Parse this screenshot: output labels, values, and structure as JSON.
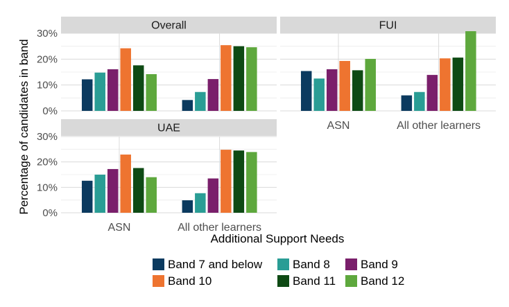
{
  "chart_data": {
    "type": "bar",
    "xlabel": "Additional Support Needs",
    "ylabel": "Percentage of candidates in band",
    "ylim": [
      0,
      30
    ],
    "y_ticks": [
      "0%",
      "10%",
      "20%",
      "30%"
    ],
    "y_tick_values": [
      0,
      10,
      20,
      30
    ],
    "categories": [
      "ASN",
      "All other learners"
    ],
    "legend_position": "bottom",
    "grid": true,
    "legend": [
      {
        "name": "Band 7 and below",
        "color": "#0b3a5f"
      },
      {
        "name": "Band 8",
        "color": "#2a9d95"
      },
      {
        "name": "Band 9",
        "color": "#7a1f6b"
      },
      {
        "name": "Band 10",
        "color": "#ee7430"
      },
      {
        "name": "Band 11",
        "color": "#0e4a14"
      },
      {
        "name": "Band 12",
        "color": "#5ea83d"
      }
    ],
    "panels": [
      {
        "title": "Overall",
        "values": [
          [
            12.2,
            14.8,
            16.1,
            24.2,
            17.6,
            14.2
          ],
          [
            4.2,
            7.3,
            12.3,
            25.4,
            25.0,
            24.6
          ]
        ]
      },
      {
        "title": "FUI",
        "values": [
          [
            15.4,
            12.5,
            16.1,
            19.3,
            15.7,
            20.1
          ],
          [
            6.0,
            7.3,
            13.9,
            20.3,
            20.6,
            30.8
          ]
        ]
      },
      {
        "title": "UAE",
        "values": [
          [
            12.6,
            15.0,
            17.2,
            22.9,
            17.6,
            14.0
          ],
          [
            4.9,
            7.7,
            13.5,
            24.8,
            24.5,
            23.9
          ]
        ]
      }
    ]
  }
}
